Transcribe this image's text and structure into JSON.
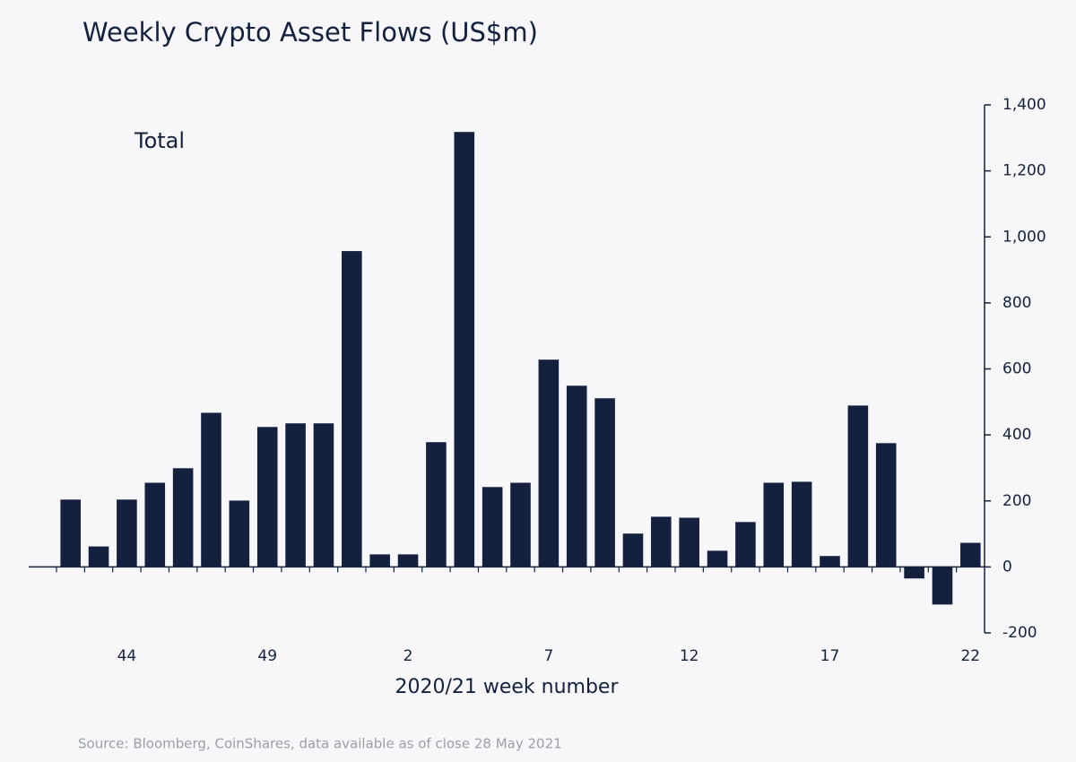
{
  "chart_data": {
    "type": "bar",
    "title": "Weekly Crypto Asset Flows (US$m)",
    "annotation": "Total",
    "x_label": "2020/21 week number",
    "source": "Source: Bloomberg, CoinShares, data available as of close 28 May 2021",
    "categories": [
      null,
      null,
      "44",
      null,
      null,
      null,
      null,
      "49",
      null,
      null,
      null,
      null,
      "2",
      null,
      null,
      null,
      null,
      "7",
      null,
      null,
      null,
      null,
      "12",
      null,
      null,
      null,
      null,
      "17",
      null,
      null,
      null,
      null,
      "22"
    ],
    "values": [
      204,
      62,
      204,
      255,
      299,
      467,
      201,
      424,
      435,
      435,
      957,
      38,
      38,
      378,
      1318,
      242,
      255,
      628,
      549,
      511,
      101,
      152,
      149,
      49,
      136,
      255,
      258,
      33,
      489,
      375,
      -35,
      -114,
      73
    ],
    "color": "#13213f",
    "ylim": [
      -200,
      1400
    ],
    "yticks": [
      -200,
      0,
      200,
      400,
      600,
      {
        "value": 800,
        "label": "800"
      },
      {
        "value": 1000,
        "label": "1,000"
      },
      {
        "value": 1200,
        "label": "1,200"
      },
      {
        "value": 1400,
        "label": "1,400"
      }
    ],
    "y_axis_side": "right",
    "grid": false
  }
}
